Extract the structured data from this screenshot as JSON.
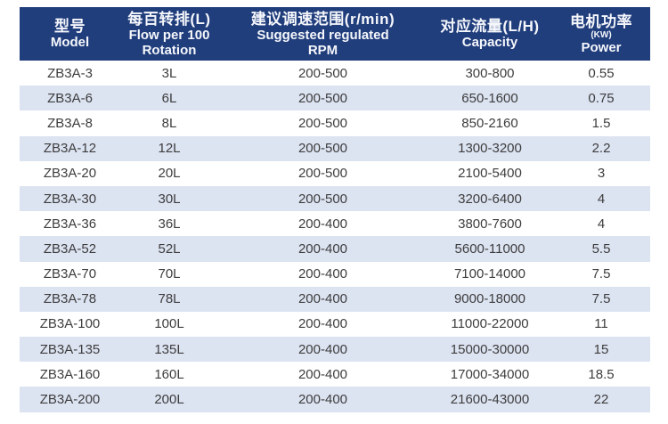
{
  "colors": {
    "header_bg": "#203d7c",
    "header_text": "#f5f7fb",
    "stripe": "#dce3f1",
    "row_text": "#3d3d3d",
    "page_bg": "#ffffff"
  },
  "table": {
    "columns": [
      {
        "key": "model",
        "lines": [
          {
            "text": "型号",
            "size": "lg"
          },
          {
            "text": "Model",
            "size": "md"
          }
        ]
      },
      {
        "key": "flow-per-100-rotation",
        "lines": [
          {
            "text": "每百转排(L)",
            "size": "lg"
          },
          {
            "text": "Flow per 100",
            "size": "md"
          },
          {
            "text": "Rotation",
            "size": "md"
          }
        ]
      },
      {
        "key": "suggested-rpm-range",
        "lines": [
          {
            "text": "建议调速范围(r/min)",
            "size": "lg"
          },
          {
            "text": "Suggested regulated",
            "size": "md"
          },
          {
            "text": "RPM",
            "size": "md"
          }
        ]
      },
      {
        "key": "capacity",
        "lines": [
          {
            "text": "对应流量(L/H)",
            "size": "lg"
          },
          {
            "text": "Capacity",
            "size": "md"
          }
        ]
      },
      {
        "key": "power",
        "lines": [
          {
            "text": "电机功率",
            "size": "lg"
          },
          {
            "text": "(KW)",
            "size": "sm"
          },
          {
            "text": "Power",
            "size": "md"
          }
        ]
      }
    ],
    "rows": [
      [
        "ZB3A-3",
        "3L",
        "200-500",
        "300-800",
        "0.55"
      ],
      [
        "ZB3A-6",
        "6L",
        "200-500",
        "650-1600",
        "0.75"
      ],
      [
        "ZB3A-8",
        "8L",
        "200-500",
        "850-2160",
        "1.5"
      ],
      [
        "ZB3A-12",
        "12L",
        "200-500",
        "1300-3200",
        "2.2"
      ],
      [
        "ZB3A-20",
        "20L",
        "200-500",
        "2100-5400",
        "3"
      ],
      [
        "ZB3A-30",
        "30L",
        "200-500",
        "3200-6400",
        "4"
      ],
      [
        "ZB3A-36",
        "36L",
        "200-400",
        "3800-7600",
        "4"
      ],
      [
        "ZB3A-52",
        "52L",
        "200-400",
        "5600-11000",
        "5.5"
      ],
      [
        "ZB3A-70",
        "70L",
        "200-400",
        "7100-14000",
        "7.5"
      ],
      [
        "ZB3A-78",
        "78L",
        "200-400",
        "9000-18000",
        "7.5"
      ],
      [
        "ZB3A-100",
        "100L",
        "200-400",
        "11000-22000",
        "11"
      ],
      [
        "ZB3A-135",
        "135L",
        "200-400",
        "15000-30000",
        "15"
      ],
      [
        "ZB3A-160",
        "160L",
        "200-400",
        "17000-34000",
        "18.5"
      ],
      [
        "ZB3A-200",
        "200L",
        "200-400",
        "21600-43000",
        "22"
      ]
    ]
  }
}
